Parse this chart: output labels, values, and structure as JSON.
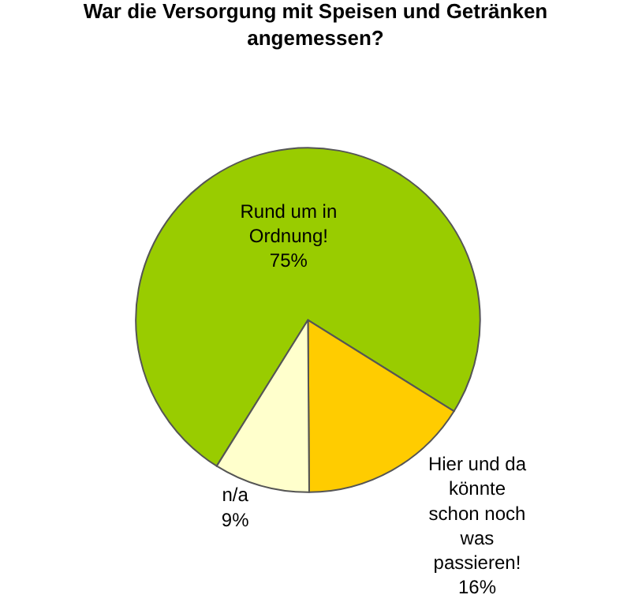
{
  "chart_data": {
    "type": "pie",
    "title": "War die Versorgung mit Speisen und Getränken angemessen?",
    "categories": [
      "Rund um in Ordnung!",
      "Hier und da könnte schon noch was passieren!",
      "n/a"
    ],
    "values": [
      75,
      16,
      9
    ],
    "value_labels": [
      "75%",
      "16%",
      "9%"
    ],
    "colors": [
      "#99cc00",
      "#ffcc00",
      "#ffffcc"
    ],
    "legend": false
  }
}
